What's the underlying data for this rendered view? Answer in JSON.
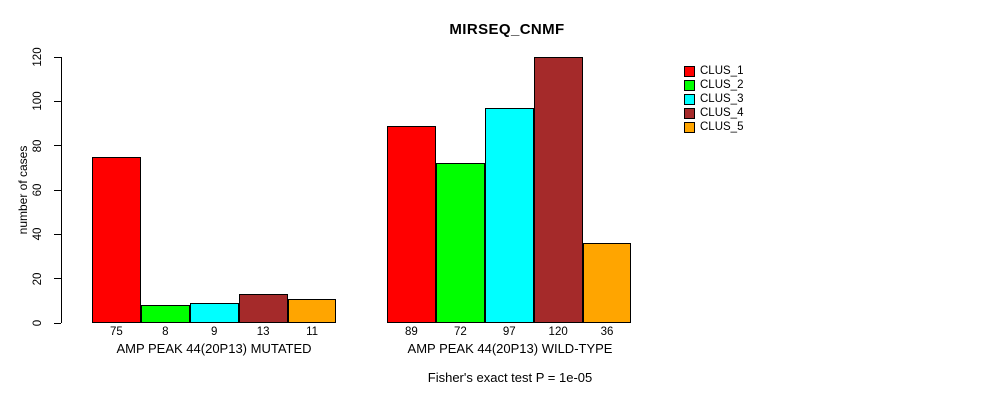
{
  "chart_data": {
    "type": "bar",
    "title": "MIRSEQ_CNMF",
    "ylabel": "number of cases",
    "ylim": [
      0,
      120
    ],
    "yticks": [
      0,
      20,
      40,
      60,
      80,
      100,
      120
    ],
    "grid": false,
    "legend_position": "right",
    "categories": [
      "AMP PEAK 44(20P13) MUTATED",
      "AMP PEAK 44(20P13) WILD-TYPE"
    ],
    "groups": [
      {
        "label": "AMP PEAK 44(20P13) MUTATED",
        "values": [
          75,
          8,
          9,
          13,
          11
        ]
      },
      {
        "label": "AMP PEAK 44(20P13) WILD-TYPE",
        "values": [
          89,
          72,
          97,
          120,
          36
        ]
      }
    ],
    "series": [
      {
        "name": "CLUS_1",
        "color": "#FF0000"
      },
      {
        "name": "CLUS_2",
        "color": "#00FF00"
      },
      {
        "name": "CLUS_3",
        "color": "#00FFFF"
      },
      {
        "name": "CLUS_4",
        "color": "#A52A2A"
      },
      {
        "name": "CLUS_5",
        "color": "#FFA500"
      }
    ],
    "caption": "Fisher's exact test P = 1e-05",
    "axis_color": "#000000",
    "background_color": "#FFFFFF"
  }
}
